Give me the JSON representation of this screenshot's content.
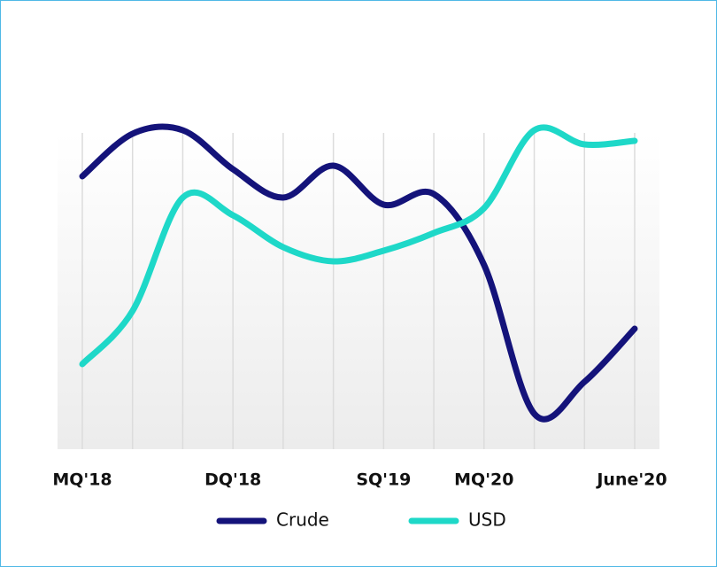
{
  "chart_data": {
    "type": "line",
    "categories": [
      "MQ'18",
      null,
      null,
      "DQ'18",
      null,
      null,
      "SQ'19",
      null,
      "MQ'20",
      null,
      null,
      "June'20"
    ],
    "series": [
      {
        "name": "Crude",
        "color": "#14137a",
        "values": [
          77,
          89,
          90,
          79,
          71,
          80,
          69,
          72,
          52,
          10,
          19,
          34
        ]
      },
      {
        "name": "USD",
        "color": "#1ed8c8",
        "values": [
          24,
          39,
          71,
          66,
          57,
          53,
          56,
          61,
          68,
          90,
          86,
          87
        ]
      }
    ],
    "ylim": [
      0,
      100
    ]
  }
}
